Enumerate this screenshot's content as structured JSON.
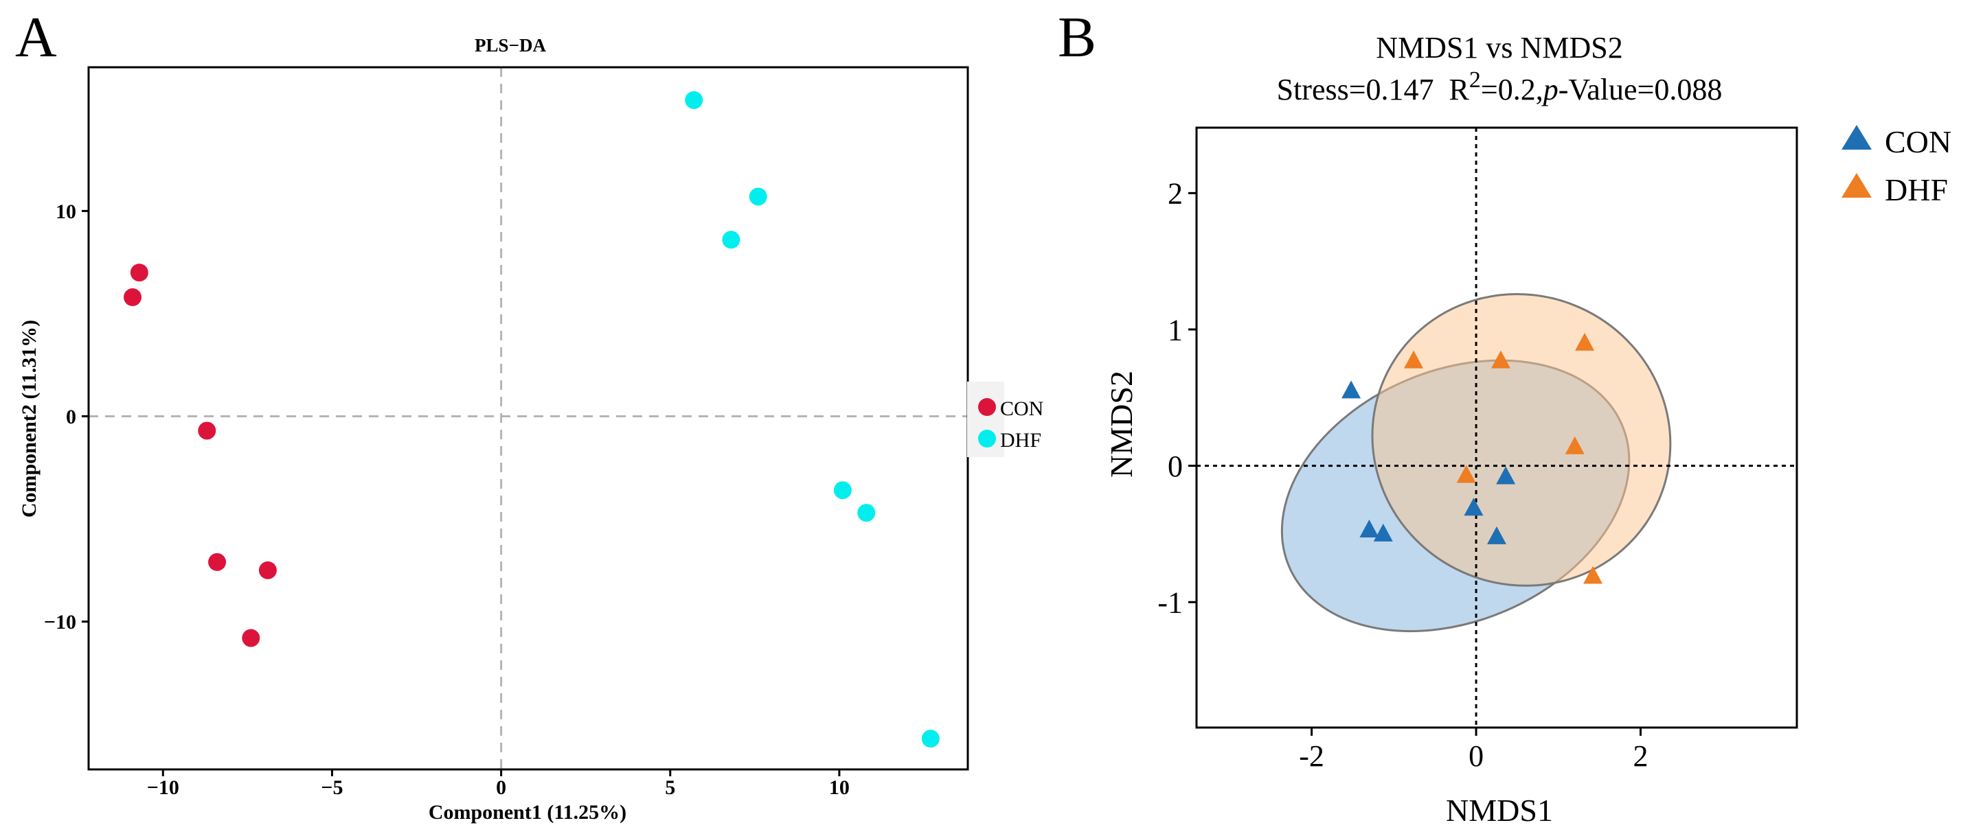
{
  "chart_data": [
    {
      "panel_label": "A",
      "type": "scatter",
      "title": "PLS−DA",
      "xlabel": "Component1 (11.25%)",
      "ylabel": "Component2 (11.31%)",
      "xlim": [
        -12.2,
        13.8
      ],
      "ylim": [
        -17.2,
        17.0
      ],
      "xticks": [
        -10,
        -5,
        0,
        5,
        10
      ],
      "xtick_labels": [
        "−10",
        "−5",
        "0",
        "5",
        "10"
      ],
      "yticks": [
        10,
        0,
        -10
      ],
      "ytick_labels": [
        "10",
        "0",
        "−10"
      ],
      "reference_lines": {
        "x": 0,
        "y": 0
      },
      "legend_position": "right",
      "series": [
        {
          "name": "CON",
          "color": "#dc143c",
          "points": [
            [
              -10.7,
              7.0
            ],
            [
              -10.9,
              5.8
            ],
            [
              -8.7,
              -0.7
            ],
            [
              -8.4,
              -7.1
            ],
            [
              -6.9,
              -7.5
            ],
            [
              -7.4,
              -10.8
            ]
          ]
        },
        {
          "name": "DHF",
          "color": "#00eeee",
          "points": [
            [
              5.7,
              15.4
            ],
            [
              7.6,
              10.7
            ],
            [
              6.8,
              8.6
            ],
            [
              10.1,
              -3.6
            ],
            [
              10.8,
              -4.7
            ],
            [
              12.7,
              -15.7
            ]
          ]
        }
      ]
    },
    {
      "panel_label": "B",
      "type": "scatter",
      "title": "NMDS1 vs NMDS2",
      "subtitle": {
        "stress": "Stress=0.147",
        "r_prefix": "R",
        "r_sup": "2",
        "r_value": "=0.2,",
        "p_italic": "p",
        "p_value": "-Value=0.088"
      },
      "xlabel": "NMDS1",
      "ylabel": "NMDS2",
      "xlim": [
        -3.4,
        3.9
      ],
      "ylim": [
        -1.92,
        2.48
      ],
      "xticks": [
        -2,
        0,
        2
      ],
      "xtick_labels": [
        "-2",
        "0",
        "2"
      ],
      "yticks": [
        2,
        1,
        0,
        -1
      ],
      "ytick_labels": [
        "2",
        "1",
        "0",
        "-1"
      ],
      "reference_lines": {
        "x": 0,
        "y": 0
      },
      "legend_position": "top-right",
      "ellipses": [
        {
          "group": "CON",
          "color": "#7fb2dd",
          "center": [
            -0.25,
            -0.22
          ],
          "semi_axes": [
            2.2,
            0.92
          ],
          "angle_deg": -23
        },
        {
          "group": "DHF",
          "color": "#fbc58f",
          "center": [
            0.55,
            0.19
          ],
          "semi_axes": [
            1.76,
            1.1
          ],
          "angle_deg": -63
        }
      ],
      "series": [
        {
          "name": "CON",
          "color": "#1f6fb4",
          "points": [
            [
              -1.52,
              0.55
            ],
            [
              -1.3,
              -0.47
            ],
            [
              -1.13,
              -0.5
            ],
            [
              -0.03,
              -0.31
            ],
            [
              0.36,
              -0.08
            ],
            [
              0.25,
              -0.52
            ]
          ]
        },
        {
          "name": "DHF",
          "color": "#ef7d22",
          "points": [
            [
              -0.76,
              0.77
            ],
            [
              0.3,
              0.77
            ],
            [
              1.32,
              0.9
            ],
            [
              1.2,
              0.14
            ],
            [
              -0.12,
              -0.07
            ],
            [
              1.42,
              -0.81
            ]
          ]
        }
      ]
    }
  ]
}
